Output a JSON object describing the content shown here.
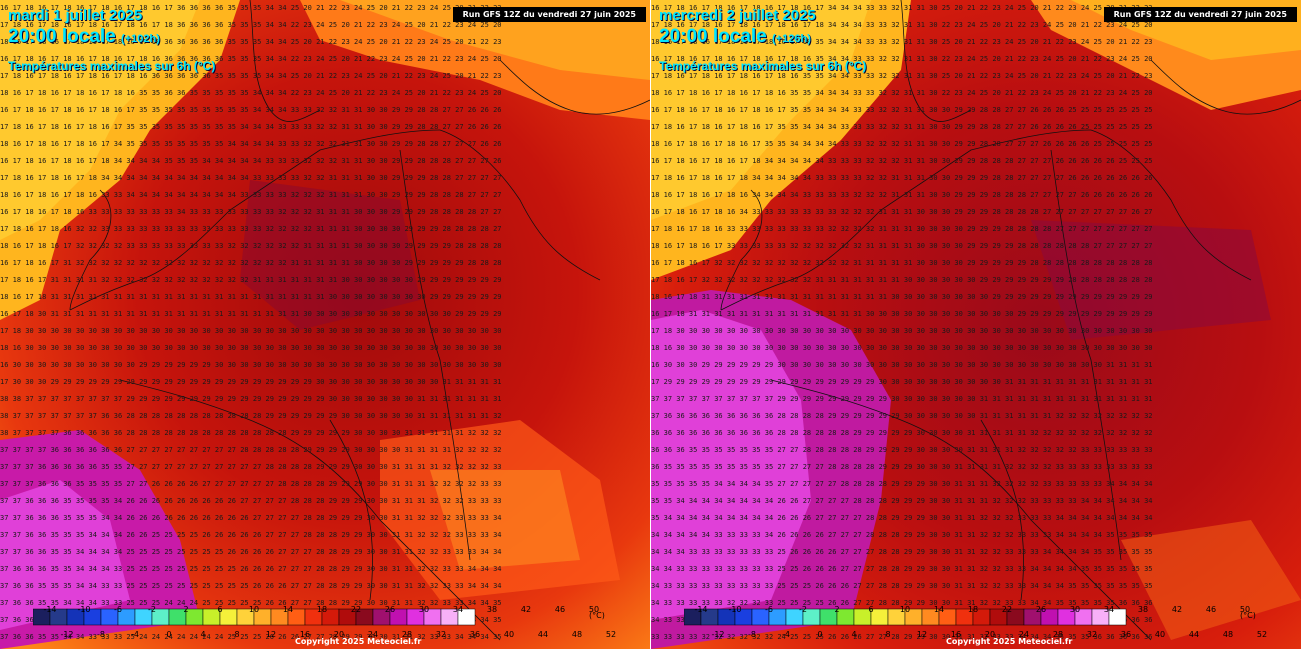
{
  "panels": [
    {
      "date": "mardi 1 juillet 2025",
      "time": "20:00 locale",
      "lead": "(+102h)",
      "param": "Températures maximales sur 6h (°C)",
      "run": "Run GFS 12Z du vendredi 27 juin 2025",
      "copyright": "Copyright 2025 Meteociel.fr"
    },
    {
      "date": "mercredi 2 juillet 2025",
      "time": "20:00 locale",
      "lead": "(+126h)",
      "param": "Températures maximales sur 6h (°C)",
      "run": "Run GFS 12Z du vendredi 27 juin 2025",
      "copyright": "Copyright 2025 Meteociel.fr"
    }
  ],
  "scale": {
    "unit": "(°C)",
    "top_labels": [
      "-14",
      "-10",
      "-6",
      "-2",
      "2",
      "6",
      "10",
      "14",
      "18",
      "22",
      "26",
      "30",
      "34",
      "38",
      "42",
      "46",
      "50"
    ],
    "bottom_labels": [
      "-12",
      "-8",
      "-4",
      "0",
      "4",
      "8",
      "12",
      "16",
      "20",
      "24",
      "28",
      "32",
      "36",
      "40",
      "44",
      "48",
      "52"
    ],
    "colors": [
      "#1b1f5e",
      "#253a8a",
      "#1433b8",
      "#1a3fe0",
      "#2a63ff",
      "#2d9cff",
      "#3fd4ff",
      "#5df0c8",
      "#3fe06a",
      "#7ee830",
      "#c8f02a",
      "#f5f03a",
      "#ffd23a",
      "#ffb02a",
      "#ff8a20",
      "#ff5e14",
      "#f0300e",
      "#d41a0a",
      "#b00c0c",
      "#8a0a1e",
      "#a0106e",
      "#c010b0",
      "#e030e0",
      "#f070f0",
      "#f8b0f8",
      "#ffffff"
    ]
  }
}
